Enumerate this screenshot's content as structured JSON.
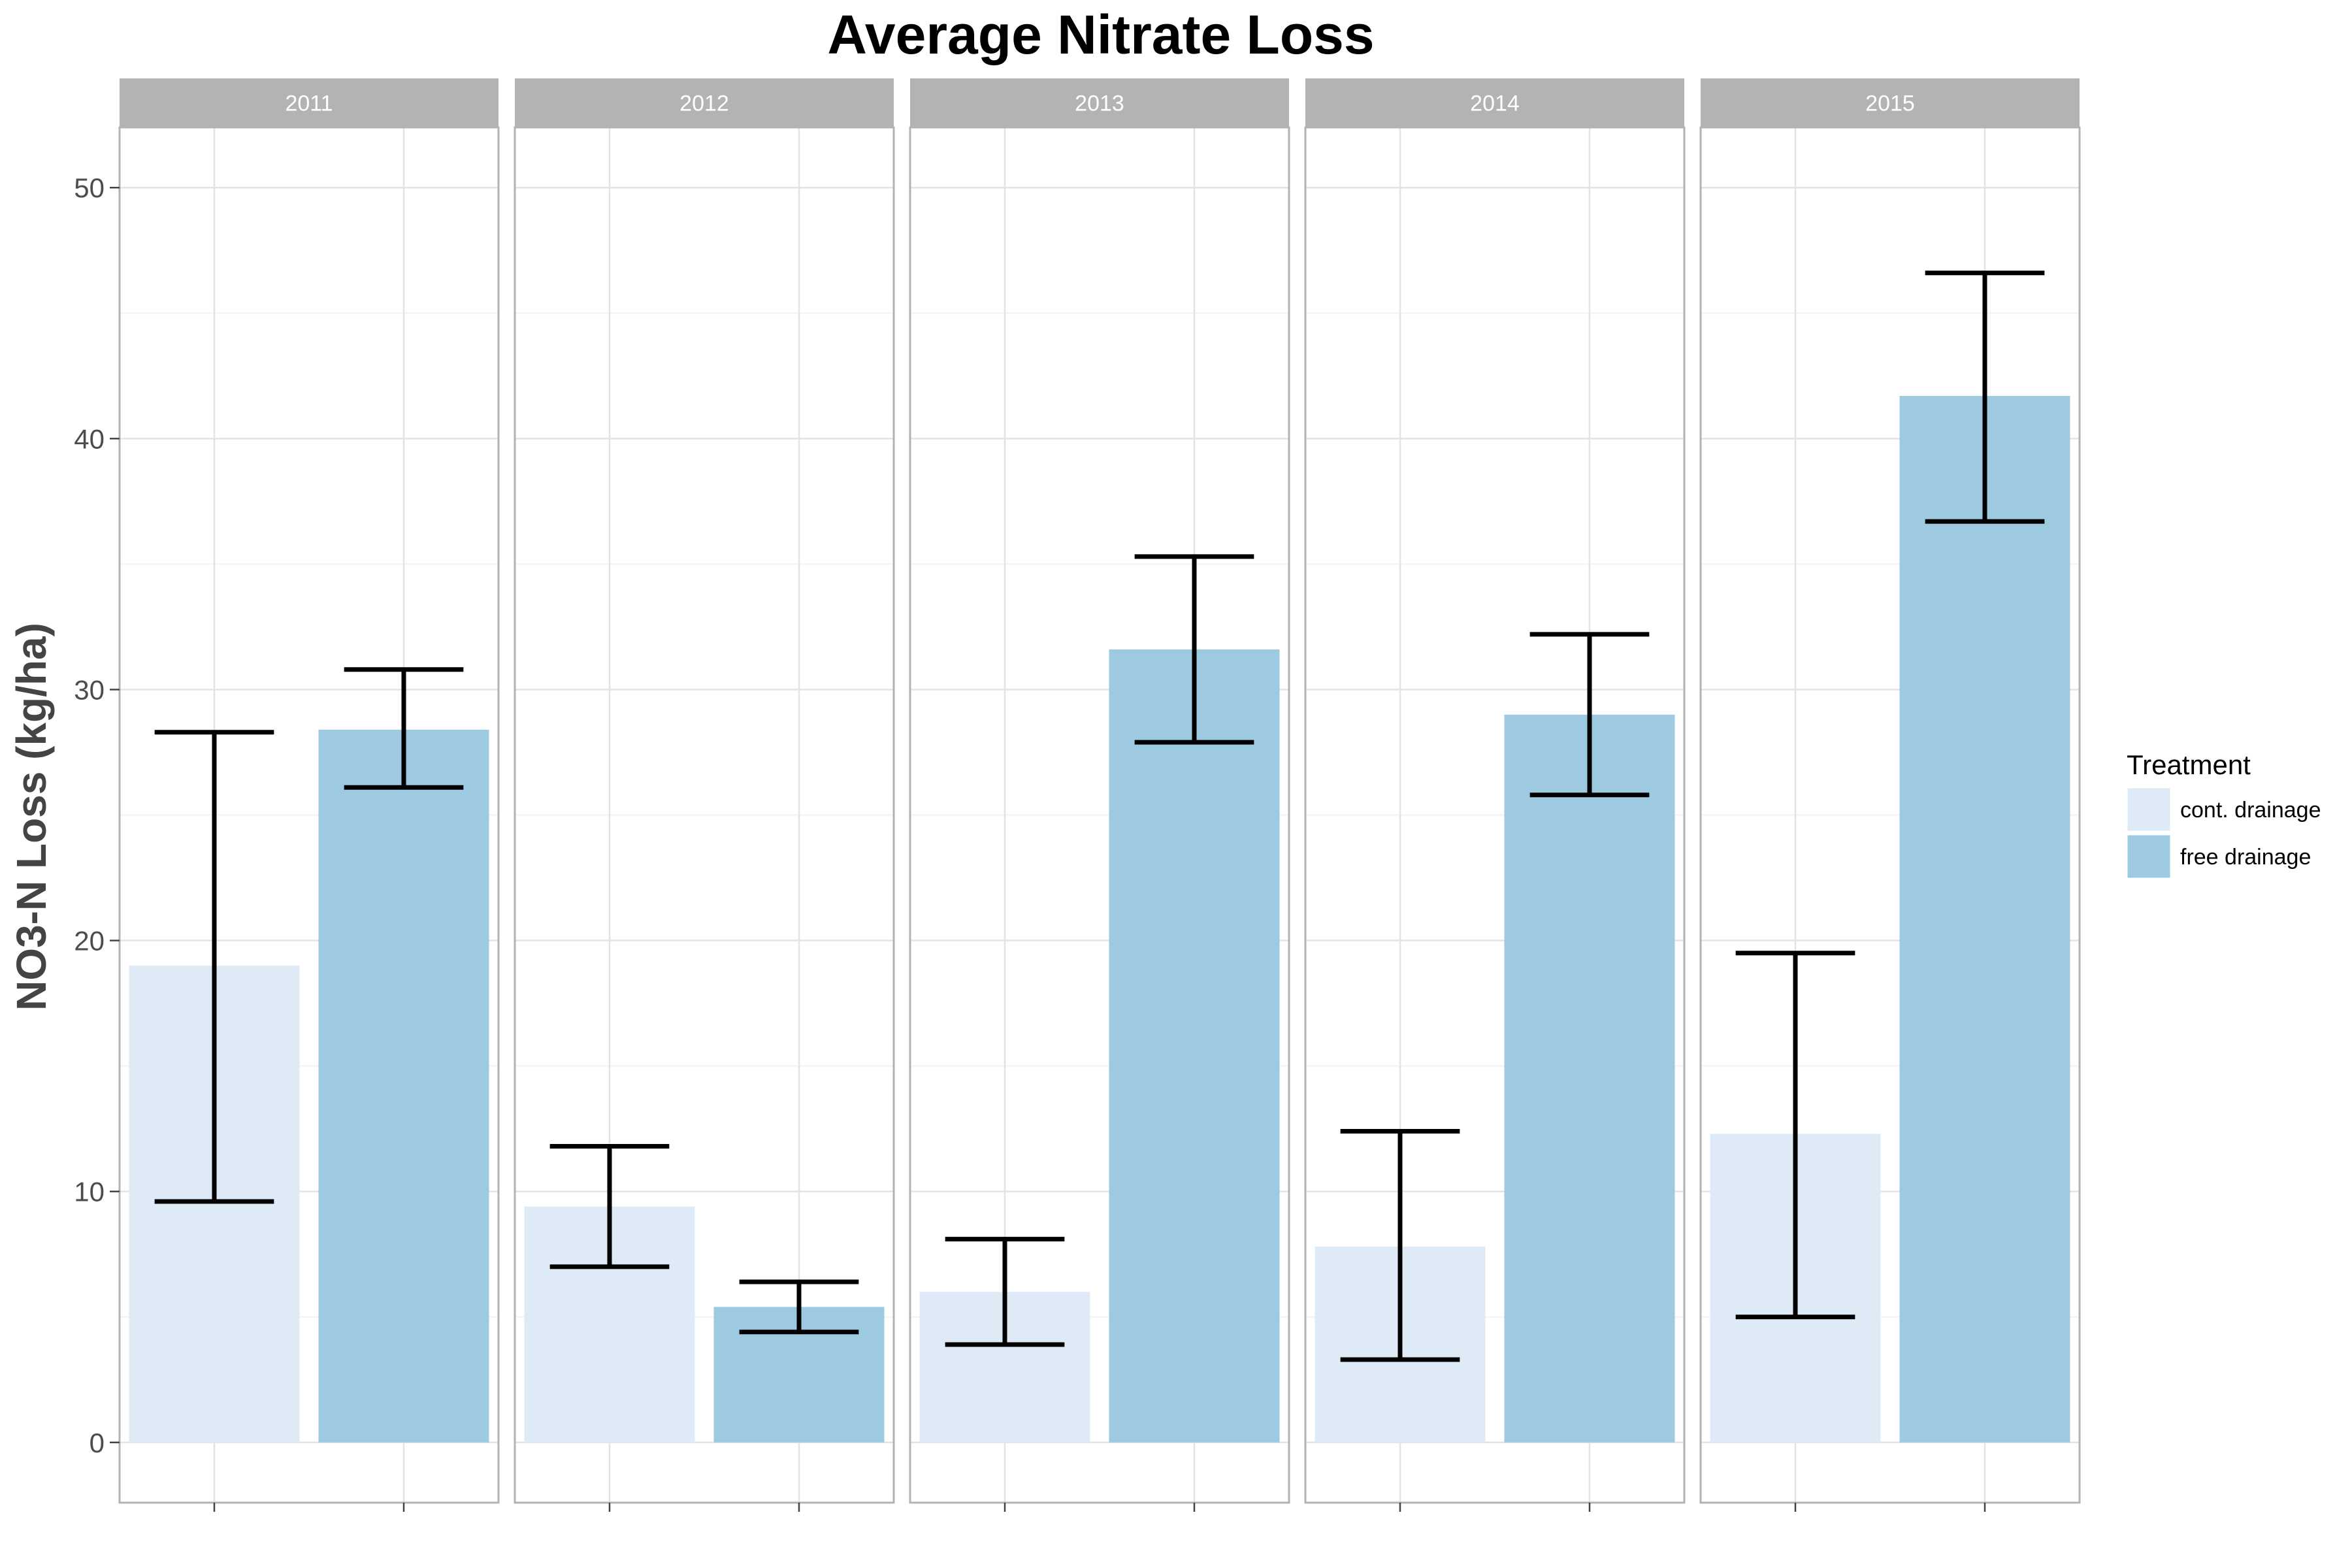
{
  "chart_data": {
    "type": "bar",
    "title": "Average Nitrate Loss",
    "ylabel": "NO3-N Loss (kg/ha)",
    "xlabel": "",
    "ylim": [
      -2.4,
      52.4
    ],
    "yticks": [
      0,
      10,
      20,
      30,
      40,
      50
    ],
    "facets": [
      "2011",
      "2012",
      "2013",
      "2014",
      "2015"
    ],
    "legend": {
      "title": "Treatment",
      "position": "right"
    },
    "grid": true,
    "series": [
      {
        "name": "cont. drainage",
        "color": "#deebf7",
        "values": [
          19.0,
          9.4,
          6.0,
          7.8,
          12.3
        ],
        "error_low": [
          9.6,
          7.0,
          3.9,
          3.3,
          5.0
        ],
        "error_high": [
          28.3,
          11.8,
          8.1,
          12.4,
          19.5
        ]
      },
      {
        "name": "free drainage",
        "color": "#9ecae1",
        "values": [
          28.4,
          5.4,
          31.6,
          29.0,
          41.7
        ],
        "error_low": [
          26.1,
          4.4,
          27.9,
          25.8,
          36.7
        ],
        "error_high": [
          30.8,
          6.4,
          35.3,
          32.2,
          46.6
        ]
      }
    ]
  }
}
